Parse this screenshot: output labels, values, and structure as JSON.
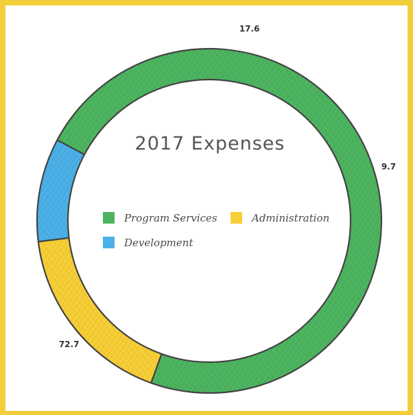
{
  "chart_data": {
    "type": "pie",
    "variant": "donut",
    "title": "2017 Expenses",
    "categories": [
      "Program Services",
      "Administration",
      "Development"
    ],
    "values": [
      72.7,
      17.6,
      9.7
    ],
    "colors": [
      "#4db560",
      "#f7cf36",
      "#4bb1e8"
    ],
    "data_labels": [
      "72.7",
      "17.6",
      "9.7"
    ],
    "legend_position": "center"
  },
  "page": {
    "background": "#f2cf3a",
    "panel_background": "#ffffff",
    "style": "hand-drawn"
  }
}
